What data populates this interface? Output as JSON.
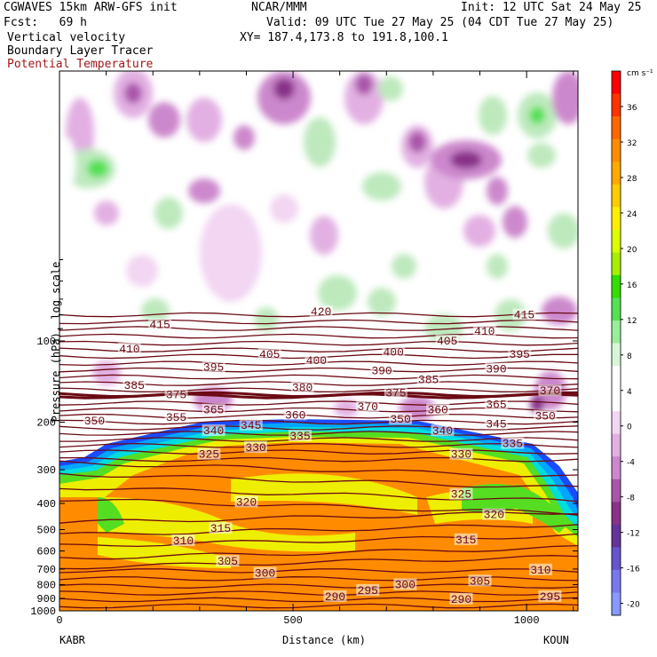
{
  "header": {
    "left_line1": "CGWAVES 15km ARW-GFS init",
    "center_line1": "NCAR/MMM",
    "right_line1": "Init: 12 UTC Sat 24 May 25",
    "left_line2": "Fcst:   69 h",
    "right_line2": "Valid: 09 UTC Tue 27 May 25 (04 CDT Tue 27 May 25)",
    "field1": "Vertical velocity",
    "field2": "Boundary Layer Tracer",
    "field3": "Potential Temperature",
    "xy": "XY= 187.4,173.8 to 191.8,100.1"
  },
  "colors": {
    "theta": "#6b0a14",
    "field3_text": "#a01818"
  },
  "colorbar": {
    "unit": "cm s⁻¹",
    "labels": [
      "36",
      "32",
      "28",
      "24",
      "20",
      "16",
      "12",
      "8",
      "4",
      "0",
      "-4",
      "-8",
      "-12",
      "-16",
      "-20"
    ],
    "colors": [
      "#ff0000",
      "#ff3300",
      "#ff6600",
      "#ff8c00",
      "#ffaa00",
      "#ffcc00",
      "#ffee00",
      "#d9ff00",
      "#a6f000",
      "#33dd00",
      "#55e055",
      "#99ee99",
      "#d8f7d8",
      "#ffffff",
      "#ffffff",
      "#f2d6f2",
      "#e2b0e2",
      "#cc88cc",
      "#aa55aa",
      "#883388",
      "#663399",
      "#6655cc",
      "#7777ee",
      "#8899ff"
    ]
  },
  "chart_data": {
    "type": "heatmap",
    "ylabel": "Pressure (hPa), log scale",
    "xlabel": "Distance (km)",
    "x_ticks": [
      "0",
      "500",
      "1000"
    ],
    "y_ticks": [
      "100",
      "200",
      "300",
      "400",
      "500",
      "600",
      "700",
      "800",
      "900",
      "1000"
    ],
    "xlim": [
      0,
      1110
    ],
    "ylim": [
      1000,
      40
    ],
    "endpoints": {
      "left": "KABR",
      "right": "KOUN"
    },
    "theta_labels": [
      {
        "t": "415",
        "x": 215,
        "p": 87
      },
      {
        "t": "420",
        "x": 560,
        "p": 78
      },
      {
        "t": "415",
        "x": 995,
        "p": 80
      },
      {
        "t": "410",
        "x": 150,
        "p": 107
      },
      {
        "t": "405",
        "x": 450,
        "p": 112
      },
      {
        "t": "405",
        "x": 830,
        "p": 100
      },
      {
        "t": "410",
        "x": 910,
        "p": 92
      },
      {
        "t": "400",
        "x": 550,
        "p": 118
      },
      {
        "t": "400",
        "x": 715,
        "p": 110
      },
      {
        "t": "395",
        "x": 330,
        "p": 125
      },
      {
        "t": "395",
        "x": 985,
        "p": 112
      },
      {
        "t": "390",
        "x": 690,
        "p": 129
      },
      {
        "t": "390",
        "x": 935,
        "p": 127
      },
      {
        "t": "385",
        "x": 160,
        "p": 146
      },
      {
        "t": "385",
        "x": 790,
        "p": 139
      },
      {
        "t": "380",
        "x": 520,
        "p": 149
      },
      {
        "t": "375",
        "x": 250,
        "p": 158
      },
      {
        "t": "375",
        "x": 720,
        "p": 156
      },
      {
        "t": "370",
        "x": 1050,
        "p": 153
      },
      {
        "t": "365",
        "x": 330,
        "p": 180
      },
      {
        "t": "370",
        "x": 660,
        "p": 175
      },
      {
        "t": "360",
        "x": 505,
        "p": 188
      },
      {
        "t": "360",
        "x": 810,
        "p": 180
      },
      {
        "t": "365",
        "x": 935,
        "p": 172
      },
      {
        "t": "350",
        "x": 75,
        "p": 198
      },
      {
        "t": "355",
        "x": 250,
        "p": 192
      },
      {
        "t": "350",
        "x": 730,
        "p": 195
      },
      {
        "t": "345",
        "x": 410,
        "p": 205
      },
      {
        "t": "345",
        "x": 935,
        "p": 203
      },
      {
        "t": "350",
        "x": 1040,
        "p": 190
      },
      {
        "t": "340",
        "x": 330,
        "p": 215
      },
      {
        "t": "335",
        "x": 515,
        "p": 225
      },
      {
        "t": "340",
        "x": 820,
        "p": 215
      },
      {
        "t": "335",
        "x": 970,
        "p": 240
      },
      {
        "t": "330",
        "x": 420,
        "p": 248
      },
      {
        "t": "325",
        "x": 320,
        "p": 263
      },
      {
        "t": "330",
        "x": 860,
        "p": 263
      },
      {
        "t": "325",
        "x": 860,
        "p": 370
      },
      {
        "t": "320",
        "x": 400,
        "p": 395
      },
      {
        "t": "320",
        "x": 930,
        "p": 440
      },
      {
        "t": "315",
        "x": 345,
        "p": 495
      },
      {
        "t": "315",
        "x": 870,
        "p": 545
      },
      {
        "t": "310",
        "x": 265,
        "p": 550
      },
      {
        "t": "305",
        "x": 360,
        "p": 655
      },
      {
        "t": "300",
        "x": 440,
        "p": 725
      },
      {
        "t": "310",
        "x": 1030,
        "p": 705
      },
      {
        "t": "305",
        "x": 900,
        "p": 775
      },
      {
        "t": "300",
        "x": 740,
        "p": 800
      },
      {
        "t": "295",
        "x": 660,
        "p": 840
      },
      {
        "t": "295",
        "x": 1050,
        "p": 885
      },
      {
        "t": "290",
        "x": 590,
        "p": 885
      },
      {
        "t": "290",
        "x": 860,
        "p": 905
      }
    ]
  }
}
